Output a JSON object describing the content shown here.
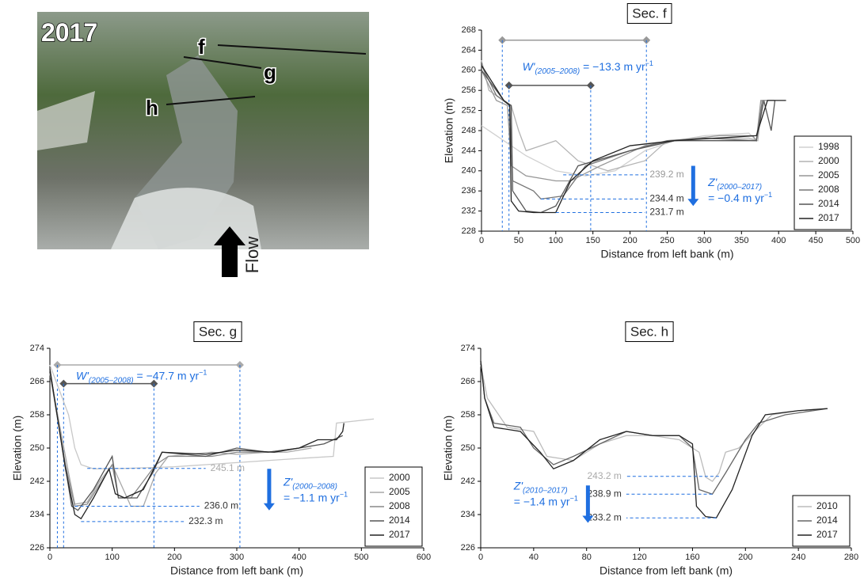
{
  "photo": {
    "year": "2017",
    "sections": [
      "f",
      "g",
      "h"
    ],
    "flow": "Flow"
  },
  "chart_data": [
    {
      "type": "line",
      "title": "Sec. f",
      "xlabel": "Distance from left bank (m)",
      "ylabel": "Elevation (m)",
      "xlim": [
        0,
        500
      ],
      "xticks": [
        0,
        50,
        100,
        150,
        200,
        250,
        300,
        350,
        400,
        450,
        500
      ],
      "ylim": [
        228,
        268
      ],
      "yticks": [
        228,
        232,
        236,
        240,
        244,
        248,
        252,
        256,
        260,
        264,
        268
      ],
      "series": [
        {
          "name": "1998",
          "color": "#d0d0d0",
          "x": [
            0,
            20,
            40,
            60,
            100,
            140,
            180,
            220,
            260,
            300,
            360,
            370,
            380,
            395
          ],
          "values": [
            249,
            247,
            245,
            243,
            240,
            239,
            240,
            244,
            246,
            247,
            247.5,
            246,
            254,
            254
          ]
        },
        {
          "name": "2000",
          "color": "#b4b4b4",
          "x": [
            0,
            10,
            30,
            40,
            50,
            60,
            100,
            130,
            170,
            220,
            250,
            300,
            360,
            372,
            378,
            390
          ],
          "values": [
            262,
            256,
            254,
            253,
            248,
            244,
            246,
            242,
            240,
            242,
            246,
            246.5,
            246.5,
            246,
            254,
            254
          ]
        },
        {
          "name": "2005",
          "color": "#969696",
          "x": [
            0,
            20,
            35,
            40,
            60,
            100,
            120,
            160,
            220,
            260,
            320,
            365,
            370,
            376,
            395
          ],
          "values": [
            260,
            254,
            253,
            241,
            239,
            238,
            238,
            241,
            245,
            246,
            247,
            247,
            246,
            254,
            254
          ]
        },
        {
          "name": "2008",
          "color": "#767676",
          "x": [
            0,
            20,
            38,
            42,
            70,
            80,
            110,
            140,
            200,
            250,
            300,
            370,
            378
          ],
          "values": [
            261,
            255,
            253,
            238,
            236,
            234.4,
            235,
            241,
            244,
            246,
            246.5,
            246,
            254
          ]
        },
        {
          "name": "2014",
          "color": "#555555",
          "x": [
            0,
            30,
            40,
            42,
            60,
            80,
            100,
            130,
            200,
            260,
            370,
            380,
            390,
            395
          ],
          "values": [
            260,
            254,
            253,
            236,
            232,
            231.7,
            233,
            241,
            244,
            246,
            246,
            254,
            248,
            254
          ]
        },
        {
          "name": "2017",
          "color": "#222222",
          "x": [
            0,
            30,
            38,
            40,
            50,
            70,
            100,
            120,
            150,
            200,
            260,
            370,
            385,
            410
          ],
          "values": [
            261,
            254,
            253,
            234,
            232,
            231.7,
            231.7,
            238,
            242,
            245,
            246,
            247,
            254,
            254
          ]
        }
      ],
      "levels": [
        {
          "value": 239.2,
          "label": "239.2 m",
          "from": 110,
          "to": 220,
          "color": "#999999"
        },
        {
          "value": 234.4,
          "label": "234.4 m",
          "from": 80,
          "to": 220,
          "color": "#333333"
        },
        {
          "value": 231.7,
          "label": "231.7 m",
          "from": 100,
          "to": 220,
          "color": "#333333"
        }
      ],
      "spans": [
        {
          "from": 28,
          "to": 222,
          "at": 266,
          "color": "#999999"
        },
        {
          "from": 37,
          "to": 147,
          "at": 257,
          "color": "#555555"
        }
      ],
      "width_note": {
        "parts": [
          "W'",
          "(2005–2008)",
          " = −13.3 m yr",
          "−1"
        ],
        "at": [
          55,
          260
        ]
      },
      "depth_note": {
        "parts": [
          "Z'",
          "(2000–2017)",
          "= −0.4 m yr",
          "−1"
        ],
        "at": [
          305,
          237
        ],
        "arrow": [
          285,
          241,
          233
        ]
      },
      "legend": "lower right"
    },
    {
      "type": "line",
      "title": "Sec. g",
      "xlabel": "Distance from left bank (m)",
      "ylabel": "Elevation (m)",
      "xlim": [
        0,
        600
      ],
      "xticks": [
        0,
        100,
        200,
        300,
        400,
        500,
        600
      ],
      "ylim": [
        226,
        274
      ],
      "yticks": [
        226,
        234,
        242,
        250,
        258,
        266,
        274
      ],
      "series": [
        {
          "name": "2000",
          "color": "#c8c8c8",
          "x": [
            0,
            20,
            30,
            40,
            50,
            70,
            120,
            200,
            300,
            400,
            455,
            460,
            520
          ],
          "values": [
            270,
            262,
            258,
            250,
            246,
            245,
            245.1,
            245.5,
            246.5,
            247.5,
            248,
            256,
            257
          ]
        },
        {
          "name": "2005",
          "color": "#a8a8a8",
          "x": [
            0,
            30,
            40,
            60,
            80,
            100,
            130,
            150,
            170,
            190,
            260,
            300,
            350,
            380,
            420
          ],
          "values": [
            268,
            244,
            236.5,
            237,
            242,
            246,
            236,
            236,
            244,
            248,
            249,
            248.5,
            249,
            249,
            250
          ]
        },
        {
          "name": "2008",
          "color": "#888888",
          "x": [
            0,
            25,
            40,
            60,
            100,
            110,
            130,
            170,
            190,
            260,
            300,
            350,
            400
          ],
          "values": [
            268,
            246,
            236,
            236.5,
            246,
            238,
            238,
            246,
            248,
            248,
            249,
            249,
            250
          ]
        },
        {
          "name": "2014",
          "color": "#555555",
          "x": [
            0,
            20,
            35,
            45,
            70,
            100,
            110,
            140,
            165,
            180,
            250,
            300,
            350,
            400,
            440,
            470
          ],
          "values": [
            269,
            250,
            236,
            235,
            240,
            248,
            238,
            238,
            244,
            249,
            248,
            250,
            249,
            250,
            251,
            253
          ]
        },
        {
          "name": "2017",
          "color": "#222222",
          "x": [
            0,
            25,
            40,
            50,
            70,
            95,
            105,
            120,
            150,
            180,
            250,
            300,
            360,
            400,
            430,
            460,
            470,
            472
          ],
          "values": [
            269,
            245,
            234,
            233,
            238,
            245,
            239,
            238,
            240,
            249,
            248.5,
            249.5,
            249,
            250,
            252,
            252,
            254,
            256
          ]
        }
      ],
      "levels": [
        {
          "value": 245.1,
          "label": "245.1 m",
          "from": 60,
          "to": 250,
          "color": "#aaaaaa"
        },
        {
          "value": 236.0,
          "label": "236.0 m",
          "from": 40,
          "to": 240,
          "color": "#333333"
        },
        {
          "value": 232.3,
          "label": "232.3 m",
          "from": 50,
          "to": 215,
          "color": "#333333"
        }
      ],
      "spans": [
        {
          "from": 12,
          "to": 305,
          "at": 270,
          "color": "#aaaaaa"
        },
        {
          "from": 22,
          "to": 167,
          "at": 265.5,
          "color": "#555555"
        }
      ],
      "width_note": {
        "parts": [
          "W'",
          "(2005–2008)",
          " = −47.7 m yr",
          "−1"
        ],
        "at": [
          42,
          266.5
        ]
      },
      "depth_note": {
        "parts": [
          "Z'",
          "(2000–2008)",
          "= −1.1 m yr",
          "−1"
        ],
        "at": [
          375,
          241
        ],
        "arrow": [
          352,
          245,
          235
        ]
      },
      "legend": "lower right"
    },
    {
      "type": "line",
      "title": "Sec. h",
      "xlabel": "Distance from left bank (m)",
      "ylabel": "Elevation (m)",
      "xlim": [
        0,
        280
      ],
      "xticks": [
        0,
        40,
        80,
        120,
        160,
        200,
        240,
        280
      ],
      "ylim": [
        226,
        274
      ],
      "yticks": [
        226,
        234,
        242,
        250,
        258,
        266,
        274
      ],
      "series": [
        {
          "name": "2010",
          "color": "#bbbbbb",
          "x": [
            0,
            5,
            20,
            40,
            50,
            70,
            90,
            110,
            130,
            150,
            165,
            170,
            175,
            180,
            185,
            195,
            210,
            220,
            240,
            262
          ],
          "values": [
            270,
            262,
            255,
            254,
            248,
            247,
            251,
            253,
            253,
            252,
            249,
            243,
            242,
            244,
            249,
            250,
            255,
            258,
            259,
            259.5
          ]
        },
        {
          "name": "2014",
          "color": "#666666",
          "x": [
            0,
            3,
            10,
            30,
            40,
            55,
            70,
            90,
            110,
            130,
            150,
            160,
            165,
            175,
            185,
            200,
            210,
            230,
            262
          ],
          "values": [
            271,
            262,
            256,
            255,
            250,
            246,
            248,
            251,
            254,
            253,
            253,
            250,
            240,
            238.9,
            244,
            252,
            256,
            258,
            259.5
          ]
        },
        {
          "name": "2017",
          "color": "#222222",
          "x": [
            0,
            3,
            10,
            30,
            45,
            55,
            70,
            90,
            110,
            130,
            150,
            160,
            163,
            170,
            178,
            190,
            205,
            215,
            240,
            262
          ],
          "values": [
            271,
            262,
            255,
            254,
            249,
            245,
            247,
            252,
            254,
            253,
            253,
            251,
            236,
            233.5,
            233.2,
            240,
            253,
            258,
            259,
            259.5
          ]
        }
      ],
      "levels": [
        {
          "value": 243.2,
          "label": "243.2 m",
          "from": 180,
          "to": 110,
          "color": "#aaaaaa"
        },
        {
          "value": 238.9,
          "label": "238.9 m",
          "from": 175,
          "to": 110,
          "color": "#333333"
        },
        {
          "value": 233.2,
          "label": "233.2 m",
          "from": 178,
          "to": 110,
          "color": "#333333"
        }
      ],
      "spans": [],
      "depth_note": {
        "parts": [
          "Z'",
          "(2010–2017)",
          "= −1.4 m yr",
          "−1"
        ],
        "at": [
          25,
          240
        ],
        "arrow": [
          81,
          241,
          232
        ]
      },
      "legend": "lower right"
    }
  ]
}
